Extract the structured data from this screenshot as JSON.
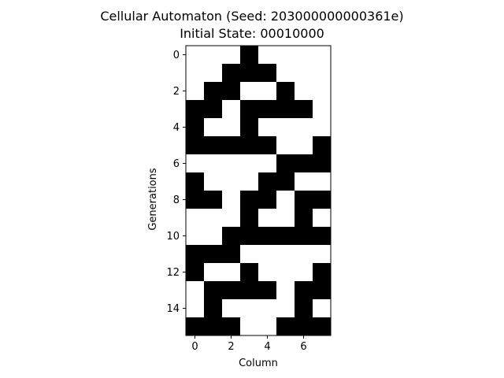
{
  "chart_data": {
    "type": "heatmap",
    "title": "Cellular Automaton (Seed: 203000000000361e)",
    "subtitle": "Initial State: 00010000",
    "xlabel": "Column",
    "ylabel": "Generations",
    "colors": {
      "on": "#000000",
      "off": "#ffffff"
    },
    "x_ticks": [
      0,
      2,
      4,
      6
    ],
    "y_ticks": [
      0,
      2,
      4,
      6,
      8,
      10,
      12,
      14
    ],
    "grid": false,
    "cells": [
      [
        0,
        0,
        0,
        1,
        0,
        0,
        0,
        0
      ],
      [
        0,
        0,
        1,
        1,
        1,
        0,
        0,
        0
      ],
      [
        0,
        1,
        1,
        0,
        0,
        1,
        0,
        0
      ],
      [
        1,
        1,
        0,
        1,
        1,
        1,
        1,
        0
      ],
      [
        1,
        0,
        0,
        1,
        0,
        0,
        0,
        0
      ],
      [
        1,
        1,
        1,
        1,
        1,
        0,
        0,
        1
      ],
      [
        0,
        0,
        0,
        0,
        0,
        1,
        1,
        1
      ],
      [
        1,
        0,
        0,
        0,
        1,
        1,
        0,
        0
      ],
      [
        1,
        1,
        0,
        1,
        1,
        0,
        1,
        1
      ],
      [
        0,
        0,
        0,
        1,
        0,
        0,
        1,
        0
      ],
      [
        0,
        0,
        1,
        1,
        1,
        1,
        1,
        1
      ],
      [
        1,
        1,
        1,
        0,
        0,
        0,
        0,
        0
      ],
      [
        1,
        0,
        0,
        1,
        0,
        0,
        0,
        1
      ],
      [
        0,
        1,
        1,
        1,
        1,
        0,
        1,
        1
      ],
      [
        0,
        1,
        0,
        0,
        0,
        0,
        1,
        0
      ],
      [
        1,
        1,
        1,
        0,
        0,
        1,
        1,
        1
      ]
    ]
  }
}
